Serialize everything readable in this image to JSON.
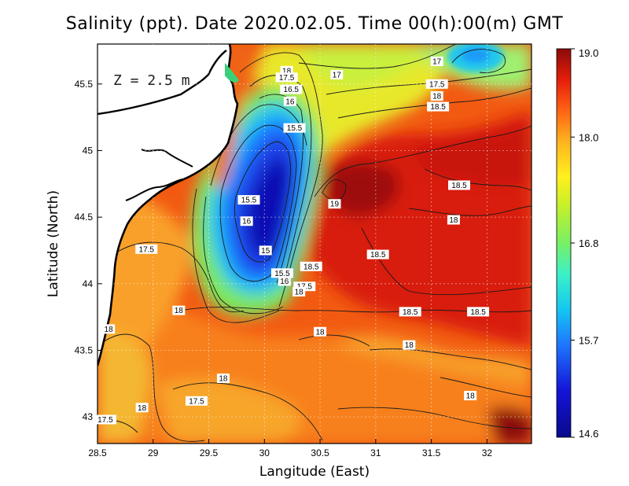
{
  "title": "Salinity (ppt). Date 2020.02.05. Time 00(h):00(m) GMT",
  "depth_label": "Z = 2.5 m",
  "chart_data": {
    "type": "heatmap",
    "xlabel": "Langitude (East)",
    "ylabel": "Latitude (North)",
    "xlim": [
      28.5,
      32.4
    ],
    "ylim": [
      42.8,
      45.8
    ],
    "x_ticks": [
      "28.5",
      "29",
      "29.5",
      "30",
      "30.5",
      "31",
      "31.5",
      "32"
    ],
    "x_tick_values": [
      28.5,
      29,
      29.5,
      30,
      30.5,
      31,
      31.5,
      32
    ],
    "y_ticks": [
      "43",
      "43.5",
      "44",
      "44.5",
      "45",
      "45.5"
    ],
    "y_tick_values": [
      43,
      43.5,
      44,
      44.5,
      45,
      45.5
    ],
    "grid": true,
    "colorbar": {
      "min": 14.6,
      "max": 19.0,
      "ticks": [
        "19.0",
        "18.0",
        "16.8",
        "15.7",
        "14.6"
      ],
      "tick_values": [
        19.0,
        18.0,
        16.8,
        15.7,
        14.6
      ]
    },
    "contour_labels": [
      {
        "text": "18",
        "lon": 30.2,
        "lat": 45.6
      },
      {
        "text": "17.5",
        "lon": 30.2,
        "lat": 45.55
      },
      {
        "text": "17",
        "lon": 30.65,
        "lat": 45.57
      },
      {
        "text": "16.5",
        "lon": 30.24,
        "lat": 45.46
      },
      {
        "text": "16",
        "lon": 30.23,
        "lat": 45.37
      },
      {
        "text": "15.5",
        "lon": 30.27,
        "lat": 45.17
      },
      {
        "text": "17",
        "lon": 31.55,
        "lat": 45.67
      },
      {
        "text": "17.5",
        "lon": 31.55,
        "lat": 45.5
      },
      {
        "text": "18",
        "lon": 31.55,
        "lat": 45.41
      },
      {
        "text": "18.5",
        "lon": 31.56,
        "lat": 45.33
      },
      {
        "text": "18.5",
        "lon": 31.75,
        "lat": 44.74
      },
      {
        "text": "18",
        "lon": 31.7,
        "lat": 44.48
      },
      {
        "text": "19",
        "lon": 30.63,
        "lat": 44.6
      },
      {
        "text": "15.5",
        "lon": 29.86,
        "lat": 44.63
      },
      {
        "text": "16",
        "lon": 29.84,
        "lat": 44.47
      },
      {
        "text": "17.5",
        "lon": 28.94,
        "lat": 44.26
      },
      {
        "text": "15",
        "lon": 30.01,
        "lat": 44.25
      },
      {
        "text": "18.5",
        "lon": 30.42,
        "lat": 44.13
      },
      {
        "text": "18.5",
        "lon": 31.02,
        "lat": 44.22
      },
      {
        "text": "15.5",
        "lon": 30.16,
        "lat": 44.08
      },
      {
        "text": "16",
        "lon": 30.18,
        "lat": 44.02
      },
      {
        "text": "17.5",
        "lon": 30.36,
        "lat": 43.98
      },
      {
        "text": "18",
        "lon": 30.31,
        "lat": 43.94
      },
      {
        "text": "18",
        "lon": 29.23,
        "lat": 43.8
      },
      {
        "text": "18.5",
        "lon": 31.31,
        "lat": 43.79
      },
      {
        "text": "18.5",
        "lon": 31.92,
        "lat": 43.79
      },
      {
        "text": "18",
        "lon": 28.6,
        "lat": 43.66
      },
      {
        "text": "18",
        "lon": 30.5,
        "lat": 43.64
      },
      {
        "text": "18",
        "lon": 31.3,
        "lat": 43.54
      },
      {
        "text": "18",
        "lon": 29.63,
        "lat": 43.29
      },
      {
        "text": "18",
        "lon": 31.85,
        "lat": 43.16
      },
      {
        "text": "17.5",
        "lon": 29.39,
        "lat": 43.12
      },
      {
        "text": "18",
        "lon": 28.9,
        "lat": 43.07
      },
      {
        "text": "17.5",
        "lon": 28.57,
        "lat": 42.98
      }
    ]
  },
  "colors": {
    "land": "#ffffff",
    "coast": "#000000",
    "contour": "#1a1a1a"
  }
}
